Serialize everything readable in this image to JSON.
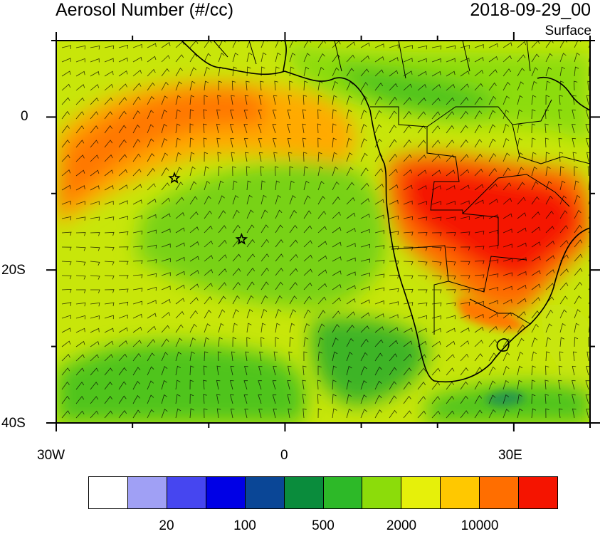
{
  "header": {
    "title": "Aerosol Number (#/cc)",
    "datetime": "2018-09-29_00",
    "level": "Surface"
  },
  "map": {
    "lat_ticks": [
      "0",
      "20S",
      "40S"
    ],
    "lon_ticks": [
      "30W",
      "0",
      "30E"
    ],
    "lon_range": [
      -30,
      40
    ],
    "lat_range": [
      -40,
      10
    ],
    "markers": [
      {
        "symbol": "star",
        "lon": -14.5,
        "lat": -8.0
      },
      {
        "symbol": "star",
        "lon": -5.7,
        "lat": -16.0
      }
    ]
  },
  "colorbar": {
    "colors": [
      "#ffffff",
      "#a0a0f5",
      "#4646f0",
      "#0000e6",
      "#0a4696",
      "#0a8c3c",
      "#2db928",
      "#8cdc0a",
      "#e6f00a",
      "#ffc800",
      "#ff6e00",
      "#f51400"
    ],
    "labels": [
      "20",
      "100",
      "500",
      "2000",
      "10000"
    ]
  }
}
